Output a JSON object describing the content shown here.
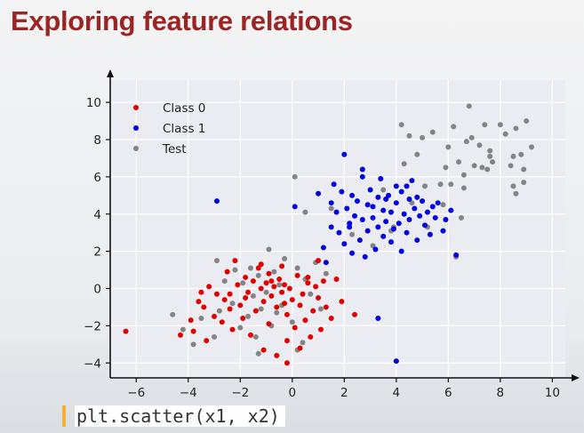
{
  "title": "Exploring feature relations",
  "code": "plt.scatter(x1, x2)",
  "chart_data": {
    "type": "scatter",
    "title": "",
    "xlabel": "",
    "ylabel": "",
    "xlim": [
      -7,
      10.5
    ],
    "ylim": [
      -4.8,
      11.2
    ],
    "x_ticks": [
      -6,
      -4,
      -2,
      0,
      2,
      4,
      6,
      8,
      10
    ],
    "y_ticks": [
      -4,
      -2,
      0,
      2,
      4,
      6,
      8,
      10
    ],
    "grid": true,
    "legend_position": "top-left",
    "series": [
      {
        "name": "Class 0",
        "color": "#e00000",
        "points": [
          [
            -6.4,
            -2.3
          ],
          [
            -4.3,
            -2.5
          ],
          [
            -3.9,
            -1.7
          ],
          [
            -3.8,
            -2.3
          ],
          [
            -3.6,
            -0.7
          ],
          [
            -3.5,
            -0.2
          ],
          [
            -3.4,
            -1.0
          ],
          [
            -3.3,
            -2.8
          ],
          [
            -3.2,
            0.1
          ],
          [
            -3.0,
            -1.5
          ],
          [
            -2.9,
            -0.3
          ],
          [
            -2.7,
            -1.8
          ],
          [
            -2.6,
            -0.6
          ],
          [
            -2.5,
            0.9
          ],
          [
            -2.4,
            -1.1
          ],
          [
            -2.3,
            -2.2
          ],
          [
            -2.2,
            1.5
          ],
          [
            -2.1,
            0.2
          ],
          [
            -2.0,
            -0.9
          ],
          [
            -1.9,
            -1.6
          ],
          [
            -1.8,
            0.6
          ],
          [
            -1.7,
            -0.2
          ],
          [
            -1.6,
            -2.5
          ],
          [
            -1.5,
            0.4
          ],
          [
            -1.4,
            -1.2
          ],
          [
            -1.3,
            1.1
          ],
          [
            -1.2,
            0.0
          ],
          [
            -1.1,
            -0.7
          ],
          [
            -1.0,
            0.3
          ],
          [
            -0.9,
            -1.9
          ],
          [
            -0.9,
            0.8
          ],
          [
            -0.8,
            -0.4
          ],
          [
            -0.7,
            0.1
          ],
          [
            -0.6,
            -1.0
          ],
          [
            -0.5,
            0.5
          ],
          [
            -0.4,
            -0.2
          ],
          [
            -0.3,
            0.2
          ],
          [
            -0.2,
            -1.4
          ],
          [
            -0.1,
            0.0
          ],
          [
            0.0,
            -0.6
          ],
          [
            0.1,
            -2.1
          ],
          [
            0.2,
            0.7
          ],
          [
            0.3,
            -0.9
          ],
          [
            0.4,
            -0.3
          ],
          [
            0.5,
            -1.7
          ],
          [
            0.6,
            0.3
          ],
          [
            0.7,
            -2.6
          ],
          [
            0.8,
            -1.2
          ],
          [
            0.9,
            0.1
          ],
          [
            1.0,
            -0.5
          ],
          [
            1.1,
            -2.2
          ],
          [
            1.2,
            0.4
          ],
          [
            1.3,
            -1.0
          ],
          [
            1.5,
            -1.6
          ],
          [
            1.7,
            0.5
          ],
          [
            1.9,
            -0.7
          ],
          [
            -1.1,
            -3.3
          ],
          [
            -0.6,
            -3.6
          ],
          [
            -0.2,
            -2.8
          ],
          [
            0.3,
            -3.2
          ],
          [
            -0.2,
            -4.0
          ],
          [
            2.4,
            -1.4
          ],
          [
            1.0,
            1.5
          ],
          [
            -1.2,
            1.3
          ],
          [
            -0.4,
            1.2
          ],
          [
            0.6,
            0.6
          ],
          [
            -2.4,
            -0.3
          ],
          [
            -1.8,
            -0.5
          ],
          [
            -0.8,
            0.4
          ],
          [
            -0.3,
            -0.8
          ]
        ]
      },
      {
        "name": "Class 1",
        "color": "#0000e0",
        "points": [
          [
            -2.9,
            4.7
          ],
          [
            0.1,
            4.4
          ],
          [
            1.0,
            5.1
          ],
          [
            1.2,
            2.2
          ],
          [
            1.3,
            1.4
          ],
          [
            1.5,
            3.3
          ],
          [
            1.5,
            4.6
          ],
          [
            1.6,
            5.6
          ],
          [
            1.7,
            4.1
          ],
          [
            1.8,
            3.0
          ],
          [
            1.9,
            5.2
          ],
          [
            2.0,
            7.2
          ],
          [
            2.0,
            2.4
          ],
          [
            2.1,
            4.3
          ],
          [
            2.2,
            3.5
          ],
          [
            2.3,
            1.9
          ],
          [
            2.3,
            5.0
          ],
          [
            2.4,
            3.9
          ],
          [
            2.5,
            4.7
          ],
          [
            2.6,
            2.6
          ],
          [
            2.7,
            3.7
          ],
          [
            2.7,
            6.0
          ],
          [
            2.8,
            1.7
          ],
          [
            2.9,
            4.5
          ],
          [
            2.9,
            3.1
          ],
          [
            3.0,
            5.3
          ],
          [
            3.1,
            3.8
          ],
          [
            3.2,
            2.1
          ],
          [
            3.3,
            4.9
          ],
          [
            3.3,
            3.3
          ],
          [
            3.4,
            5.9
          ],
          [
            3.5,
            4.2
          ],
          [
            3.5,
            2.8
          ],
          [
            3.6,
            3.6
          ],
          [
            3.7,
            5.0
          ],
          [
            3.8,
            4.1
          ],
          [
            3.8,
            2.5
          ],
          [
            3.9,
            3.2
          ],
          [
            4.0,
            5.5
          ],
          [
            4.0,
            4.6
          ],
          [
            4.1,
            3.5
          ],
          [
            4.2,
            2.0
          ],
          [
            4.2,
            5.2
          ],
          [
            4.3,
            4.0
          ],
          [
            4.4,
            3.0
          ],
          [
            4.5,
            4.8
          ],
          [
            4.5,
            3.7
          ],
          [
            4.6,
            5.8
          ],
          [
            4.7,
            4.3
          ],
          [
            4.8,
            2.6
          ],
          [
            4.9,
            3.9
          ],
          [
            5.0,
            4.7
          ],
          [
            5.1,
            3.4
          ],
          [
            5.2,
            4.1
          ],
          [
            5.3,
            2.9
          ],
          [
            5.4,
            4.4
          ],
          [
            5.5,
            3.8
          ],
          [
            5.6,
            4.6
          ],
          [
            5.8,
            3.1
          ],
          [
            6.1,
            4.2
          ],
          [
            4.0,
            -3.9
          ],
          [
            3.3,
            -1.6
          ],
          [
            2.7,
            6.4
          ],
          [
            3.6,
            4.8
          ],
          [
            4.4,
            5.5
          ],
          [
            2.2,
            3.3
          ],
          [
            3.1,
            4.4
          ],
          [
            4.8,
            4.9
          ],
          [
            5.9,
            3.7
          ],
          [
            6.3,
            1.8
          ]
        ]
      },
      {
        "name": "Test",
        "color": "#848484",
        "points": [
          [
            -4.6,
            -1.4
          ],
          [
            -4.2,
            -2.2
          ],
          [
            -3.8,
            -3.0
          ],
          [
            -3.5,
            -1.6
          ],
          [
            -3.0,
            -2.6
          ],
          [
            -2.9,
            1.5
          ],
          [
            -2.8,
            -1.2
          ],
          [
            -2.6,
            0.4
          ],
          [
            -2.3,
            -0.8
          ],
          [
            -2.2,
            1.0
          ],
          [
            -2.0,
            -2.1
          ],
          [
            -1.9,
            0.3
          ],
          [
            -1.7,
            -1.5
          ],
          [
            -1.6,
            1.1
          ],
          [
            -1.5,
            -0.4
          ],
          [
            -1.4,
            -2.6
          ],
          [
            -1.3,
            0.7
          ],
          [
            -1.2,
            -1.1
          ],
          [
            -1.0,
            -0.2
          ],
          [
            -0.9,
            2.1
          ],
          [
            -0.8,
            -2.0
          ],
          [
            -0.7,
            0.9
          ],
          [
            -0.6,
            -1.3
          ],
          [
            -0.5,
            0.2
          ],
          [
            -0.4,
            -0.9
          ],
          [
            -0.3,
            1.6
          ],
          [
            0.0,
            -1.8
          ],
          [
            0.2,
            1.1
          ],
          [
            0.4,
            -2.9
          ],
          [
            0.5,
            0.5
          ],
          [
            0.7,
            -0.3
          ],
          [
            0.9,
            1.4
          ],
          [
            1.1,
            -1.1
          ],
          [
            1.3,
            0.8
          ],
          [
            -1.3,
            -3.5
          ],
          [
            0.2,
            -3.3
          ],
          [
            0.1,
            6.0
          ],
          [
            0.5,
            4.1
          ],
          [
            1.5,
            4.3
          ],
          [
            2.3,
            2.9
          ],
          [
            3.1,
            2.3
          ],
          [
            3.5,
            5.3
          ],
          [
            3.8,
            3.1
          ],
          [
            4.3,
            6.7
          ],
          [
            4.5,
            8.2
          ],
          [
            4.6,
            4.6
          ],
          [
            4.8,
            7.2
          ],
          [
            5.0,
            8.1
          ],
          [
            5.2,
            3.3
          ],
          [
            5.4,
            8.4
          ],
          [
            5.7,
            5.6
          ],
          [
            5.8,
            4.5
          ],
          [
            5.9,
            6.5
          ],
          [
            6.0,
            7.6
          ],
          [
            6.1,
            5.6
          ],
          [
            6.2,
            8.7
          ],
          [
            6.3,
            1.7
          ],
          [
            6.4,
            6.8
          ],
          [
            6.5,
            3.8
          ],
          [
            6.6,
            6.1
          ],
          [
            6.7,
            7.9
          ],
          [
            6.8,
            9.8
          ],
          [
            6.9,
            8.1
          ],
          [
            7.0,
            6.6
          ],
          [
            7.2,
            7.7
          ],
          [
            7.3,
            6.5
          ],
          [
            7.4,
            8.8
          ],
          [
            7.5,
            6.4
          ],
          [
            7.6,
            7.4
          ],
          [
            7.7,
            6.8
          ],
          [
            8.0,
            8.8
          ],
          [
            8.2,
            8.3
          ],
          [
            8.4,
            6.6
          ],
          [
            8.5,
            5.5
          ],
          [
            8.6,
            8.6
          ],
          [
            8.6,
            5.1
          ],
          [
            8.8,
            7.2
          ],
          [
            8.9,
            6.4
          ],
          [
            8.9,
            5.7
          ],
          [
            9.0,
            9.0
          ],
          [
            9.2,
            7.6
          ],
          [
            8.5,
            7.1
          ],
          [
            7.6,
            7.1
          ],
          [
            4.2,
            8.8
          ],
          [
            3.9,
            3.3
          ],
          [
            5.1,
            5.5
          ],
          [
            6.6,
            5.4
          ]
        ]
      }
    ]
  }
}
